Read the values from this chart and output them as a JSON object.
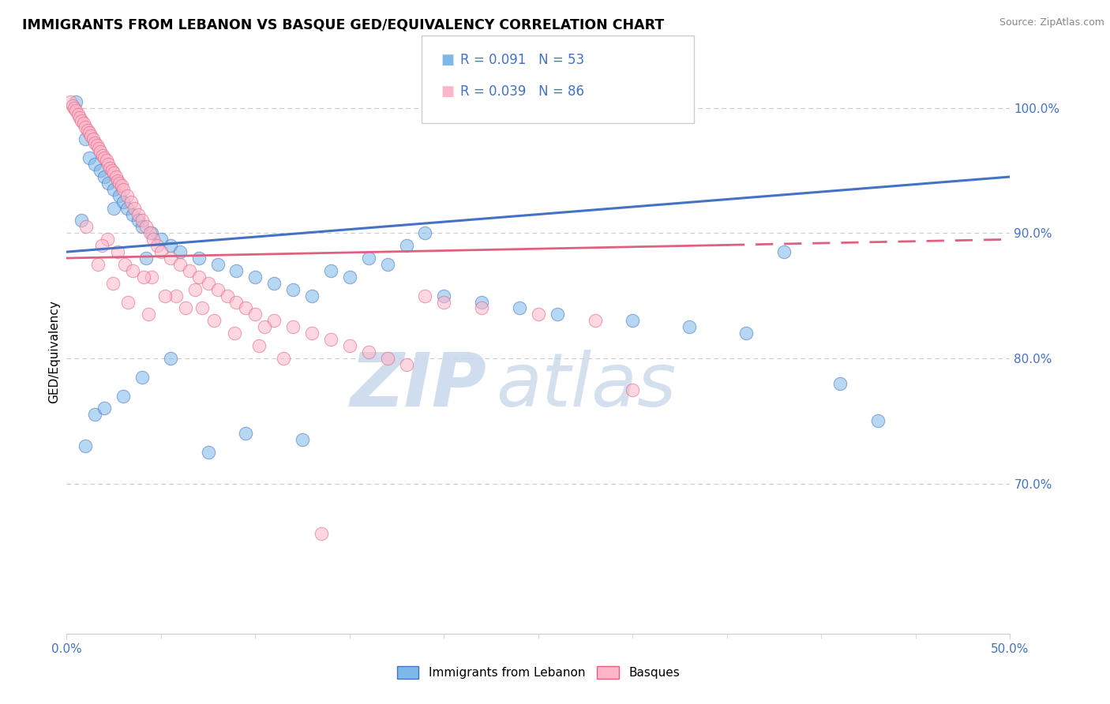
{
  "title": "IMMIGRANTS FROM LEBANON VS BASQUE GED/EQUIVALENCY CORRELATION CHART",
  "source_text": "Source: ZipAtlas.com",
  "ylabel": "GED/Equivalency",
  "xlim": [
    0.0,
    50.0
  ],
  "ylim": [
    58.0,
    103.0
  ],
  "yticks": [
    70.0,
    80.0,
    90.0,
    100.0
  ],
  "xtick_left_label": "0.0%",
  "xtick_right_label": "50.0%",
  "legend_label1": "Immigrants from Lebanon",
  "legend_label2": "Basques",
  "color_blue": "#7CB9E8",
  "color_pink": "#FFB6C8",
  "color_blue_line": "#4472C4",
  "color_pink_line": "#E06080",
  "color_text_blue": "#4472C4",
  "watermark_zip": "ZIP",
  "watermark_atlas": "atlas",
  "blue_scatter_x": [
    0.5,
    1.0,
    1.2,
    1.5,
    1.8,
    2.0,
    2.2,
    2.5,
    2.8,
    3.0,
    3.2,
    3.5,
    3.8,
    4.0,
    4.5,
    5.0,
    5.5,
    6.0,
    7.0,
    8.0,
    9.0,
    10.0,
    11.0,
    12.0,
    13.0,
    14.0,
    15.0,
    16.0,
    17.0,
    18.0,
    20.0,
    22.0,
    24.0,
    26.0,
    30.0,
    33.0,
    36.0,
    38.0,
    41.0,
    43.0,
    1.0,
    1.5,
    2.0,
    3.0,
    4.0,
    5.5,
    7.5,
    9.5,
    12.5,
    19.0,
    0.8,
    2.5,
    4.2
  ],
  "blue_scatter_y": [
    100.5,
    97.5,
    96.0,
    95.5,
    95.0,
    94.5,
    94.0,
    93.5,
    93.0,
    92.5,
    92.0,
    91.5,
    91.0,
    90.5,
    90.0,
    89.5,
    89.0,
    88.5,
    88.0,
    87.5,
    87.0,
    86.5,
    86.0,
    85.5,
    85.0,
    87.0,
    86.5,
    88.0,
    87.5,
    89.0,
    85.0,
    84.5,
    84.0,
    83.5,
    83.0,
    82.5,
    82.0,
    88.5,
    78.0,
    75.0,
    73.0,
    75.5,
    76.0,
    77.0,
    78.5,
    80.0,
    72.5,
    74.0,
    73.5,
    90.0,
    91.0,
    92.0,
    88.0
  ],
  "pink_scatter_x": [
    0.2,
    0.3,
    0.4,
    0.5,
    0.6,
    0.7,
    0.8,
    0.9,
    1.0,
    1.1,
    1.2,
    1.3,
    1.4,
    1.5,
    1.6,
    1.7,
    1.8,
    1.9,
    2.0,
    2.1,
    2.2,
    2.3,
    2.4,
    2.5,
    2.6,
    2.7,
    2.8,
    2.9,
    3.0,
    3.2,
    3.4,
    3.6,
    3.8,
    4.0,
    4.2,
    4.4,
    4.6,
    4.8,
    5.0,
    5.5,
    6.0,
    6.5,
    7.0,
    7.5,
    8.0,
    8.5,
    9.0,
    9.5,
    10.0,
    11.0,
    12.0,
    13.0,
    14.0,
    15.0,
    16.0,
    17.0,
    18.0,
    19.0,
    20.0,
    22.0,
    25.0,
    28.0,
    30.0,
    10.5,
    7.2,
    5.8,
    3.1,
    2.15,
    4.5,
    6.8,
    1.05,
    1.85,
    2.7,
    3.5,
    4.1,
    5.2,
    6.3,
    7.8,
    8.9,
    10.2,
    11.5,
    1.65,
    2.45,
    3.25,
    4.35,
    13.5
  ],
  "pink_scatter_y": [
    100.5,
    100.2,
    100.0,
    99.8,
    99.5,
    99.2,
    99.0,
    98.8,
    98.5,
    98.2,
    98.0,
    97.8,
    97.5,
    97.2,
    97.0,
    96.8,
    96.5,
    96.2,
    96.0,
    95.8,
    95.5,
    95.2,
    95.0,
    94.8,
    94.5,
    94.2,
    94.0,
    93.8,
    93.5,
    93.0,
    92.5,
    92.0,
    91.5,
    91.0,
    90.5,
    90.0,
    89.5,
    89.0,
    88.5,
    88.0,
    87.5,
    87.0,
    86.5,
    86.0,
    85.5,
    85.0,
    84.5,
    84.0,
    83.5,
    83.0,
    82.5,
    82.0,
    81.5,
    81.0,
    80.5,
    80.0,
    79.5,
    85.0,
    84.5,
    84.0,
    83.5,
    83.0,
    77.5,
    82.5,
    84.0,
    85.0,
    87.5,
    89.5,
    86.5,
    85.5,
    90.5,
    89.0,
    88.5,
    87.0,
    86.5,
    85.0,
    84.0,
    83.0,
    82.0,
    81.0,
    80.0,
    87.5,
    86.0,
    84.5,
    83.5,
    66.0
  ],
  "blue_trend": [
    88.5,
    94.5
  ],
  "pink_trend": [
    88.0,
    89.5
  ],
  "pink_solid_end": 35.0
}
